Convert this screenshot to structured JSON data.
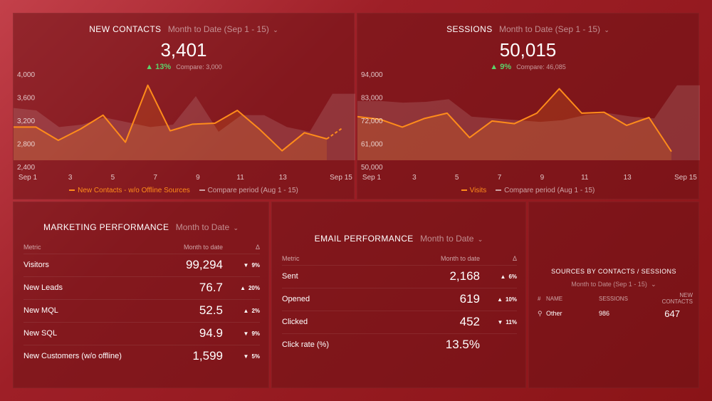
{
  "new_contacts": {
    "title": "NEW CONTACTS",
    "range": "Month to Date (Sep 1 - 15)",
    "value": "3,401",
    "change": "13%",
    "change_arrow": "▲",
    "compare": "Compare: 3,000",
    "legend_main": "New Contacts - w/o Offline Sources",
    "legend_compare": "Compare period (Aug 1 - 15)",
    "chart_data": {
      "type": "line",
      "x_ticks": [
        "Sep 1",
        "3",
        "5",
        "7",
        "9",
        "11",
        "13",
        "Sep 15"
      ],
      "y_ticks": [
        "4,000",
        "3,600",
        "3,200",
        "2,800",
        "2,400"
      ],
      "ylim": [
        2300,
        4100
      ],
      "series": [
        {
          "name": "New Contacts - w/o Offline Sources",
          "x": [
            1,
            2,
            3,
            4,
            5,
            6,
            7,
            8,
            9,
            10,
            11,
            12,
            13,
            14,
            15
          ],
          "values": [
            3000,
            3000,
            2720,
            2960,
            3250,
            2680,
            3880,
            2920,
            3060,
            3080,
            3350,
            2950,
            2500,
            2880,
            2750
          ],
          "projected": [
            2750,
            2980
          ]
        },
        {
          "name": "Compare period (Aug 1 - 15)",
          "values": [
            3400,
            3350,
            3000,
            3050,
            3200,
            3100,
            3000,
            3050,
            3650,
            2900,
            3250,
            3250,
            3000,
            2900,
            3700,
            3700
          ]
        }
      ]
    }
  },
  "sessions": {
    "title": "SESSIONS",
    "range": "Month to Date (Sep 1 - 15)",
    "value": "50,015",
    "change": "9%",
    "change_arrow": "▲",
    "compare": "Compare: 46,085",
    "legend_main": "Visits",
    "legend_compare": "Compare period (Aug 1 - 15)",
    "chart_data": {
      "type": "line",
      "x_ticks": [
        "Sep 1",
        "3",
        "5",
        "7",
        "9",
        "11",
        "13",
        "Sep 15"
      ],
      "y_ticks": [
        "94,000",
        "83,000",
        "72,000",
        "61,000",
        "50,000"
      ],
      "ylim": [
        48000,
        97000
      ],
      "series": [
        {
          "name": "Visits",
          "x": [
            1,
            2,
            3,
            4,
            5,
            6,
            7,
            8,
            9,
            10,
            11,
            12,
            13,
            14,
            15
          ],
          "values": [
            73000,
            71500,
            67000,
            72000,
            75000,
            61000,
            70500,
            69000,
            75000,
            89000,
            75000,
            75500,
            68000,
            72500,
            53000
          ]
        },
        {
          "name": "Compare period (Aug 1 - 15)",
          "values": [
            82000,
            82000,
            81000,
            81500,
            83000,
            73000,
            72000,
            71000,
            70000,
            71000,
            74000,
            75000,
            73000,
            72000,
            91000,
            91000
          ]
        }
      ]
    }
  },
  "marketing": {
    "title": "MARKETING PERFORMANCE",
    "range": "Month to Date",
    "headers": {
      "metric": "Metric",
      "value": "Month to date",
      "delta": "Δ"
    },
    "rows": [
      {
        "metric": "Visitors",
        "value": "99,294",
        "dir": "down",
        "arrow": "▼",
        "change": "9%"
      },
      {
        "metric": "New Leads",
        "value": "76.7",
        "dir": "up",
        "arrow": "▲",
        "change": "20%"
      },
      {
        "metric": "New MQL",
        "value": "52.5",
        "dir": "up",
        "arrow": "▲",
        "change": "2%"
      },
      {
        "metric": "New SQL",
        "value": "94.9",
        "dir": "down",
        "arrow": "▼",
        "change": "9%"
      },
      {
        "metric": "New Customers (w/o offline)",
        "value": "1,599",
        "dir": "down",
        "arrow": "▼",
        "change": "5%"
      }
    ]
  },
  "email": {
    "title": "EMAIL PERFORMANCE",
    "range": "Month to Date",
    "headers": {
      "metric": "Metric",
      "value": "Month to date",
      "delta": "Δ"
    },
    "rows": [
      {
        "metric": "Sent",
        "value": "2,168",
        "dir": "up",
        "arrow": "▲",
        "change": "6%"
      },
      {
        "metric": "Opened",
        "value": "619",
        "dir": "up",
        "arrow": "▲",
        "change": "10%"
      },
      {
        "metric": "Clicked",
        "value": "452",
        "dir": "down",
        "arrow": "▼",
        "change": "11%"
      },
      {
        "metric": "Click rate (%)",
        "value": "13.5%",
        "dir": "",
        "arrow": "",
        "change": ""
      }
    ]
  },
  "sources": {
    "title": "SOURCES BY CONTACTS / SESSIONS",
    "range": "Month to Date (Sep 1 - 15)",
    "headers": {
      "num": "#",
      "name": "NAME",
      "sessions": "SESSIONS",
      "contacts": "NEW CONTACTS"
    },
    "rows": [
      {
        "icon": "other-source-icon",
        "name": "Other",
        "sessions": "986",
        "contacts": "647"
      }
    ]
  },
  "colors": {
    "line": "#ff8c1a",
    "compare": "#ffffff",
    "up": "#5cd16a",
    "down": "#ff6b6b"
  }
}
